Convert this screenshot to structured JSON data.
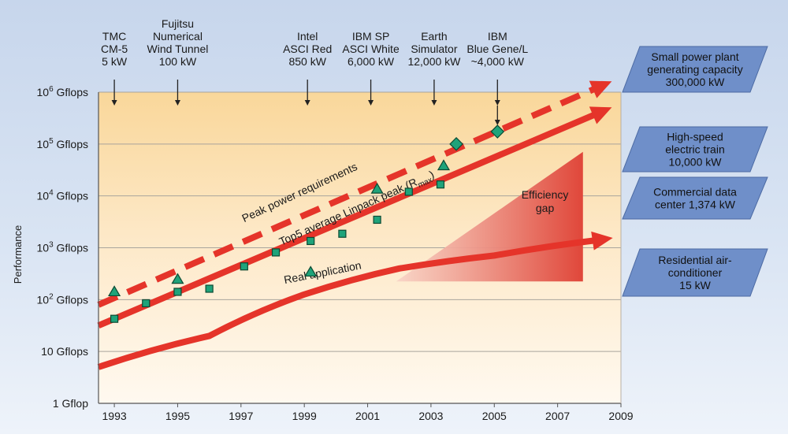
{
  "chart_data": {
    "type": "scatter",
    "ylabel": "Performance",
    "xlim": [
      1992.5,
      2009
    ],
    "ylim": [
      0,
      6
    ],
    "y_scale": "log",
    "x_ticks": [
      "1993",
      "1995",
      "1997",
      "1999",
      "2001",
      "2003",
      "2005",
      "2007",
      "2009"
    ],
    "x_tick_values": [
      1993,
      1995,
      1997,
      1999,
      2001,
      2003,
      2005,
      2007,
      2009
    ],
    "y_ticks": [
      {
        "value": 0,
        "base": "1 Gflop",
        "exp": "",
        "unit": ""
      },
      {
        "value": 1,
        "base": "10 Gflops",
        "exp": "",
        "unit": ""
      },
      {
        "value": 2,
        "base": "10",
        "exp": "2",
        "unit": " Gflops"
      },
      {
        "value": 3,
        "base": "10",
        "exp": "3",
        "unit": " Gflops"
      },
      {
        "value": 4,
        "base": "10",
        "exp": "4",
        "unit": " Gflops"
      },
      {
        "value": 5,
        "base": "10",
        "exp": "5",
        "unit": " Gflops"
      },
      {
        "value": 6,
        "base": "10",
        "exp": "6",
        "unit": " Gflops"
      }
    ],
    "machines": [
      {
        "lines": [
          "TMC",
          "CM-5",
          "5 kW"
        ],
        "year": 1993
      },
      {
        "lines": [
          "Fujitsu",
          "Numerical",
          "Wind Tunnel",
          "100 kW"
        ],
        "year": 1995
      },
      {
        "lines": [
          "Intel",
          "ASCI Red",
          "850 kW"
        ],
        "year": 1999.1
      },
      {
        "lines": [
          "IBM SP",
          "ASCI White",
          "6,000 kW"
        ],
        "year": 2001.1
      },
      {
        "lines": [
          "Earth",
          "Simulator",
          "12,000 kW"
        ],
        "year": 2003.1
      },
      {
        "lines": [
          "IBM",
          "Blue Gene/L",
          "~4,000 kW"
        ],
        "year": 2005.1
      }
    ],
    "power_refs": [
      {
        "lines": [
          "Small power plant",
          "generating capacity",
          "300,000 kW"
        ]
      },
      {
        "lines": [
          "High-speed",
          "electric train",
          "10,000 kW"
        ]
      },
      {
        "lines": [
          "Commercial data",
          "center 1,374 kW"
        ]
      },
      {
        "lines": [
          "Residential air-",
          "conditioner",
          "15 kW"
        ]
      }
    ],
    "series": [
      {
        "name": "Peak power requirements",
        "style": "dashed",
        "color": "#e5342a",
        "points": [
          [
            1992.5,
            1.9
          ],
          [
            2008.3,
            6.1
          ]
        ]
      },
      {
        "name": "Top5 average Linpack peak (R",
        "name_sub": "max",
        "name_tail": ")",
        "style": "solid",
        "color": "#e5342a",
        "points": [
          [
            1992.5,
            1.5
          ],
          [
            2008.3,
            5.6
          ]
        ]
      },
      {
        "name": "Real application",
        "style": "solid",
        "color": "#e5342a",
        "points": [
          [
            1992.5,
            0.7
          ],
          [
            1996,
            1.3
          ],
          [
            1999,
            2.1
          ],
          [
            2002,
            2.6
          ],
          [
            2005,
            2.85
          ],
          [
            2008.3,
            3.15
          ]
        ]
      }
    ],
    "markers": {
      "triangle": [
        [
          1993,
          2.15
        ],
        [
          1995,
          2.39
        ],
        [
          1999.2,
          2.53
        ],
        [
          2001.3,
          4.13
        ],
        [
          2003.4,
          4.58
        ]
      ],
      "square": [
        [
          1993,
          1.63
        ],
        [
          1994,
          1.93
        ],
        [
          1995,
          2.15
        ],
        [
          1996,
          2.21
        ],
        [
          1997.1,
          2.64
        ],
        [
          1998.1,
          2.91
        ],
        [
          1999.2,
          3.13
        ],
        [
          2000.2,
          3.27
        ],
        [
          2001.3,
          3.54
        ],
        [
          2002.3,
          4.08
        ],
        [
          2003.3,
          4.22
        ]
      ],
      "diamond": [
        [
          2003.8,
          5.0
        ],
        [
          2005.1,
          5.24
        ]
      ]
    },
    "efficiency_gap": {
      "label_lines": [
        "Efficiency",
        "gap"
      ]
    },
    "colors": {
      "accent": "#e5342a",
      "marker_fill": "#1fa37a",
      "marker_stroke": "#0d4a33",
      "box": "#6f8fc9"
    }
  }
}
